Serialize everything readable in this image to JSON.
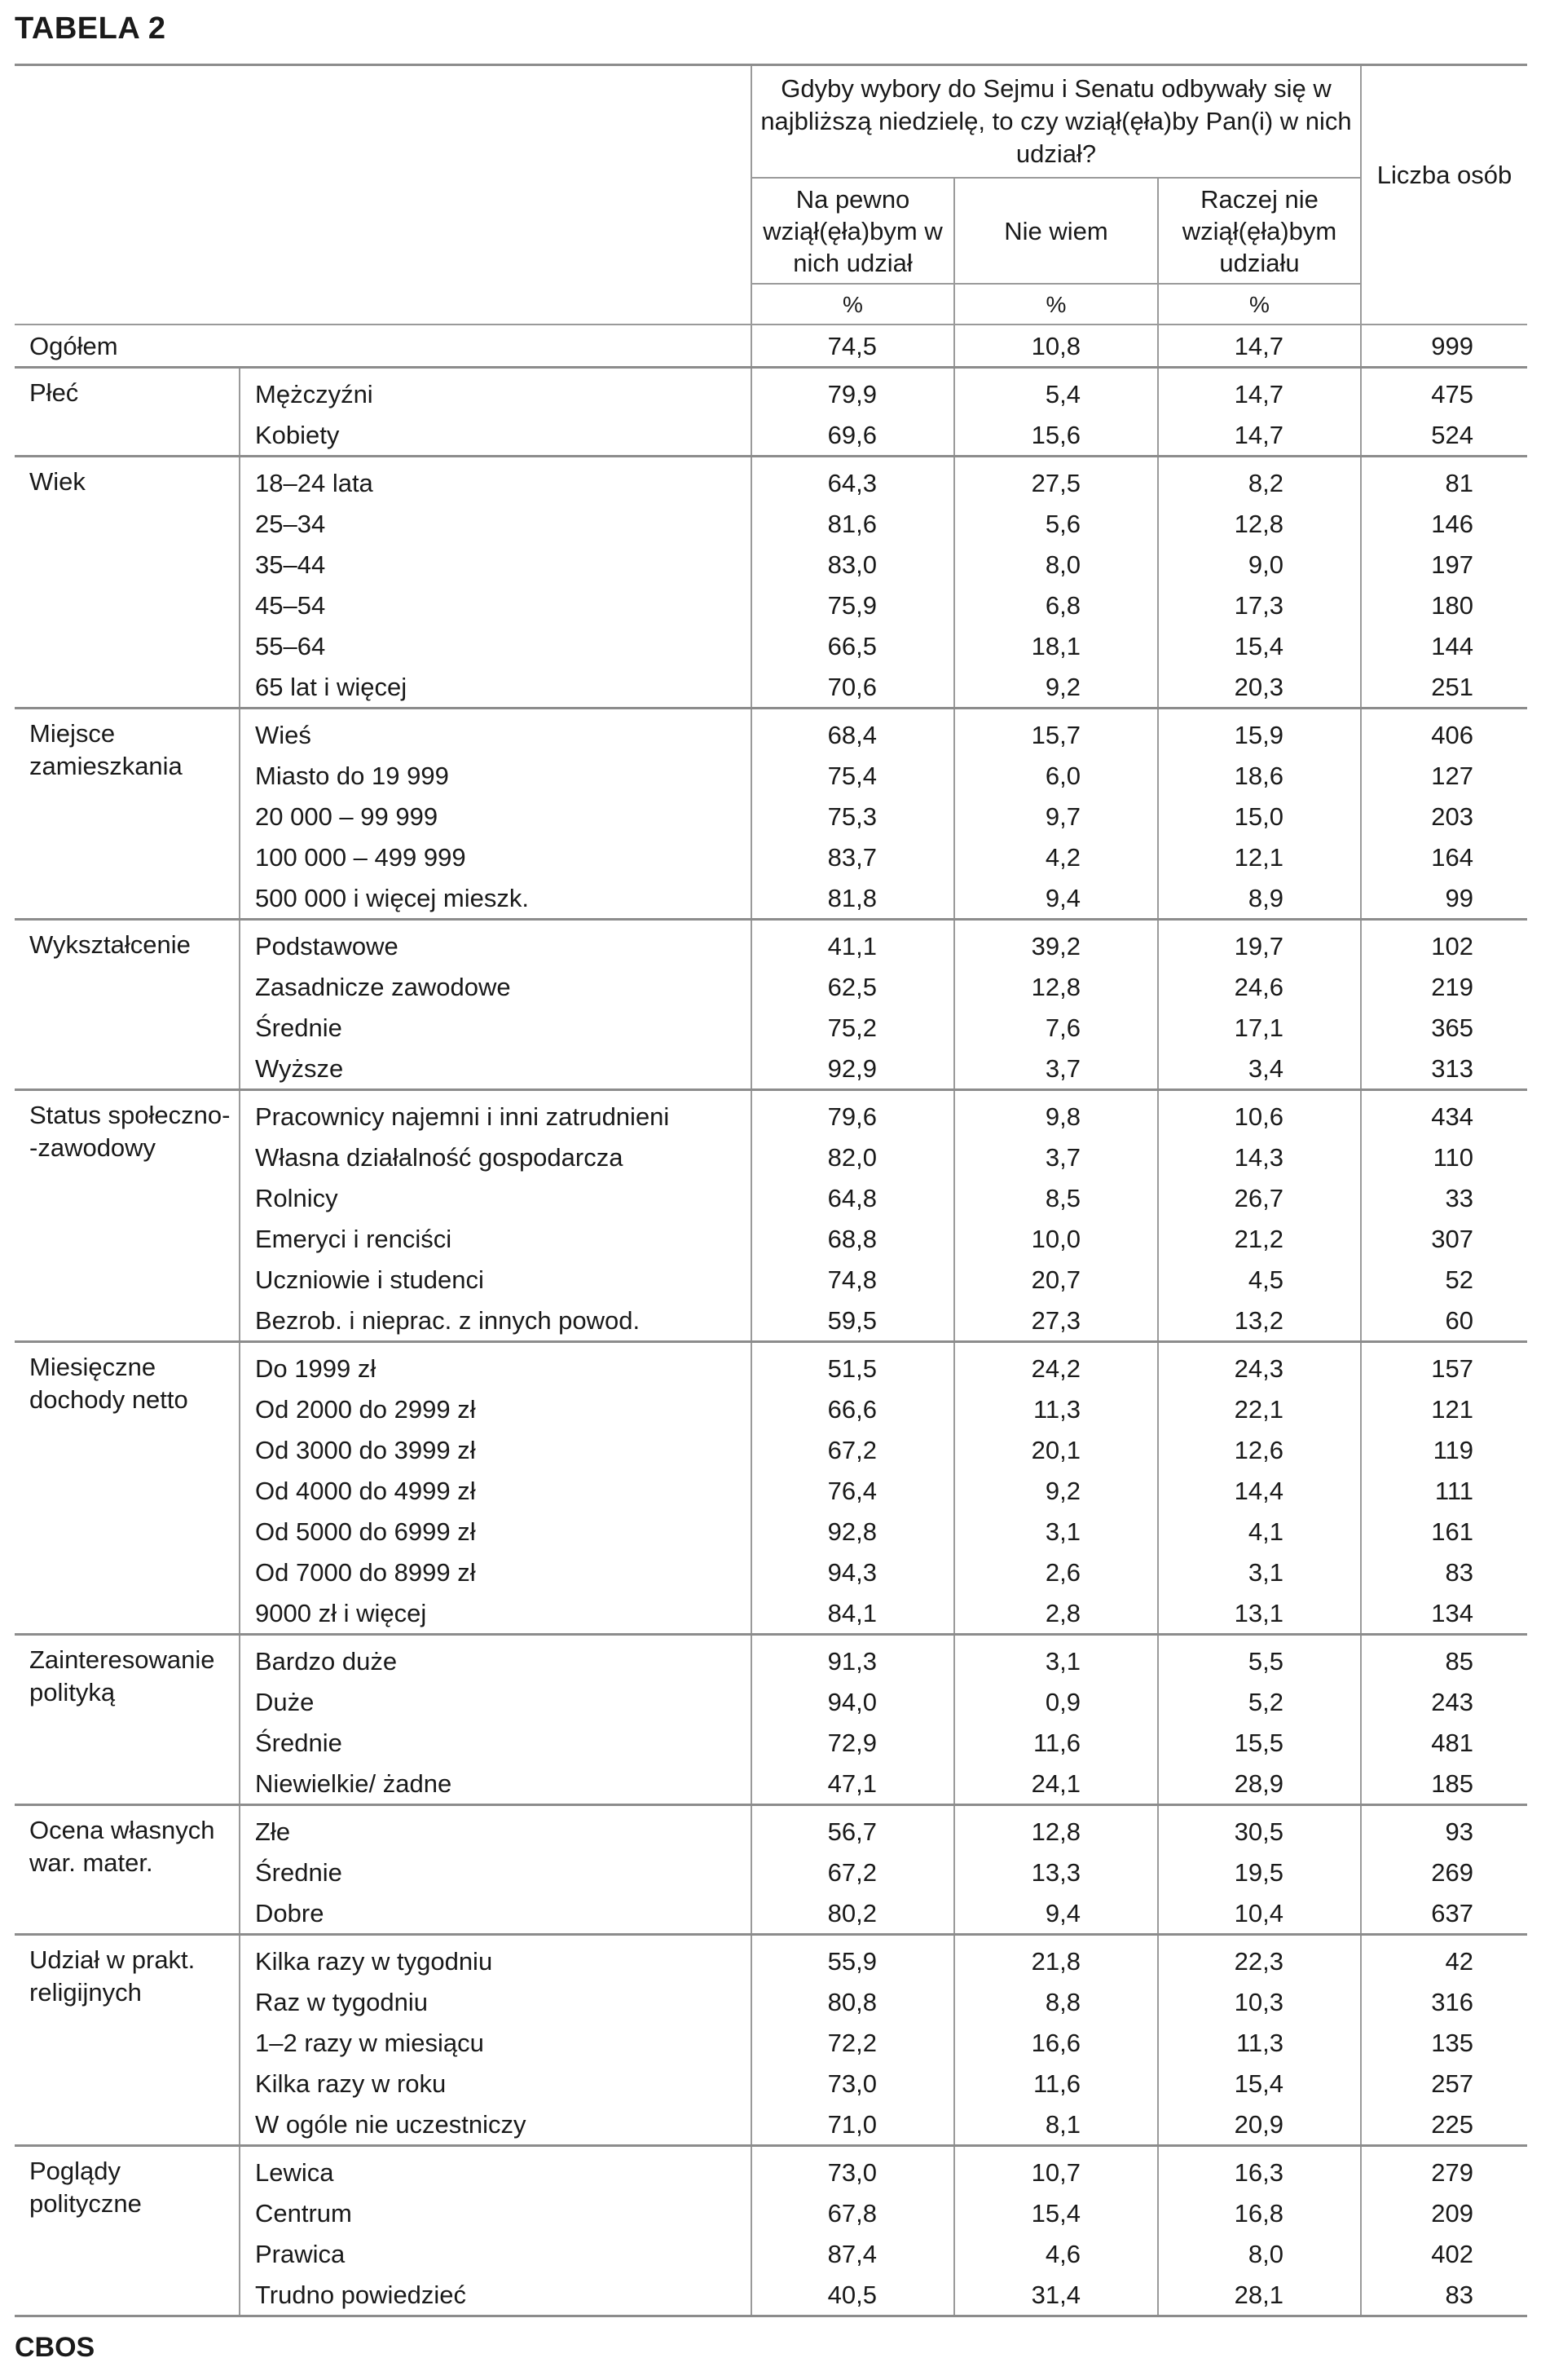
{
  "title": "TABELA 2",
  "footer": "CBOS",
  "header": {
    "question": "Gdyby wybory do Sejmu i Senatu odbywały się w najbliższą niedzielę, to czy wziął(ęła)by Pan(i) w nich udział?",
    "col1": "Na pewno wziął(ęła)bym w nich udział",
    "col2": "Nie wiem",
    "col3": "Raczej nie wziął(ęła)bym udziału",
    "col4": "Liczba osób",
    "pct": "%"
  },
  "total": {
    "label": "Ogółem",
    "values": [
      "74,5",
      "10,8",
      "14,7",
      "999"
    ]
  },
  "groups": [
    {
      "category": "Płeć",
      "rows": [
        {
          "label": "Mężczyźni",
          "values": [
            "79,9",
            "5,4",
            "14,7",
            "475"
          ]
        },
        {
          "label": "Kobiety",
          "values": [
            "69,6",
            "15,6",
            "14,7",
            "524"
          ]
        }
      ]
    },
    {
      "category": "Wiek",
      "rows": [
        {
          "label": "18–24 lata",
          "values": [
            "64,3",
            "27,5",
            "8,2",
            "81"
          ]
        },
        {
          "label": "25–34",
          "values": [
            "81,6",
            "5,6",
            "12,8",
            "146"
          ]
        },
        {
          "label": "35–44",
          "values": [
            "83,0",
            "8,0",
            "9,0",
            "197"
          ]
        },
        {
          "label": "45–54",
          "values": [
            "75,9",
            "6,8",
            "17,3",
            "180"
          ]
        },
        {
          "label": "55–64",
          "values": [
            "66,5",
            "18,1",
            "15,4",
            "144"
          ]
        },
        {
          "label": "65 lat i więcej",
          "values": [
            "70,6",
            "9,2",
            "20,3",
            "251"
          ]
        }
      ]
    },
    {
      "category": "Miejsce zamieszkania",
      "rows": [
        {
          "label": "Wieś",
          "values": [
            "68,4",
            "15,7",
            "15,9",
            "406"
          ]
        },
        {
          "label": "Miasto do 19 999",
          "values": [
            "75,4",
            "6,0",
            "18,6",
            "127"
          ]
        },
        {
          "label": "20 000 – 99 999",
          "values": [
            "75,3",
            "9,7",
            "15,0",
            "203"
          ]
        },
        {
          "label": "100 000 – 499 999",
          "values": [
            "83,7",
            "4,2",
            "12,1",
            "164"
          ]
        },
        {
          "label": "500 000 i więcej mieszk.",
          "values": [
            "81,8",
            "9,4",
            "8,9",
            "99"
          ]
        }
      ]
    },
    {
      "category": "Wykształcenie",
      "rows": [
        {
          "label": "Podstawowe",
          "values": [
            "41,1",
            "39,2",
            "19,7",
            "102"
          ]
        },
        {
          "label": "Zasadnicze zawodowe",
          "values": [
            "62,5",
            "12,8",
            "24,6",
            "219"
          ]
        },
        {
          "label": "Średnie",
          "values": [
            "75,2",
            "7,6",
            "17,1",
            "365"
          ]
        },
        {
          "label": "Wyższe",
          "values": [
            "92,9",
            "3,7",
            "3,4",
            "313"
          ]
        }
      ]
    },
    {
      "category": "Status społeczno- -zawodowy",
      "rows": [
        {
          "label": "Pracownicy najemni i inni zatrudnieni",
          "values": [
            "79,6",
            "9,8",
            "10,6",
            "434"
          ]
        },
        {
          "label": "Własna działalność gospodarcza",
          "values": [
            "82,0",
            "3,7",
            "14,3",
            "110"
          ]
        },
        {
          "label": "Rolnicy",
          "values": [
            "64,8",
            "8,5",
            "26,7",
            "33"
          ]
        },
        {
          "label": "Emeryci i renciści",
          "values": [
            "68,8",
            "10,0",
            "21,2",
            "307"
          ]
        },
        {
          "label": "Uczniowie i studenci",
          "values": [
            "74,8",
            "20,7",
            "4,5",
            "52"
          ]
        },
        {
          "label": "Bezrob. i nieprac. z innych powod.",
          "values": [
            "59,5",
            "27,3",
            "13,2",
            "60"
          ]
        }
      ]
    },
    {
      "category": "Miesięczne dochody netto",
      "rows": [
        {
          "label": "Do 1999 zł",
          "values": [
            "51,5",
            "24,2",
            "24,3",
            "157"
          ]
        },
        {
          "label": "Od 2000 do 2999 zł",
          "values": [
            "66,6",
            "11,3",
            "22,1",
            "121"
          ]
        },
        {
          "label": "Od 3000 do 3999 zł",
          "values": [
            "67,2",
            "20,1",
            "12,6",
            "119"
          ]
        },
        {
          "label": "Od 4000 do 4999 zł",
          "values": [
            "76,4",
            "9,2",
            "14,4",
            "111"
          ]
        },
        {
          "label": "Od 5000 do 6999 zł",
          "values": [
            "92,8",
            "3,1",
            "4,1",
            "161"
          ]
        },
        {
          "label": "Od 7000 do 8999 zł",
          "values": [
            "94,3",
            "2,6",
            "3,1",
            "83"
          ]
        },
        {
          "label": "9000 zł i więcej",
          "values": [
            "84,1",
            "2,8",
            "13,1",
            "134"
          ]
        }
      ]
    },
    {
      "category": "Zainteresowanie polityką",
      "rows": [
        {
          "label": "Bardzo duże",
          "values": [
            "91,3",
            "3,1",
            "5,5",
            "85"
          ]
        },
        {
          "label": "Duże",
          "values": [
            "94,0",
            "0,9",
            "5,2",
            "243"
          ]
        },
        {
          "label": "Średnie",
          "values": [
            "72,9",
            "11,6",
            "15,5",
            "481"
          ]
        },
        {
          "label": "Niewielkie/ żadne",
          "values": [
            "47,1",
            "24,1",
            "28,9",
            "185"
          ]
        }
      ]
    },
    {
      "category": "Ocena własnych war. mater.",
      "rows": [
        {
          "label": "Złe",
          "values": [
            "56,7",
            "12,8",
            "30,5",
            "93"
          ]
        },
        {
          "label": "Średnie",
          "values": [
            "67,2",
            "13,3",
            "19,5",
            "269"
          ]
        },
        {
          "label": "Dobre",
          "values": [
            "80,2",
            "9,4",
            "10,4",
            "637"
          ]
        }
      ]
    },
    {
      "category": "Udział w prakt. religijnych",
      "rows": [
        {
          "label": "Kilka razy w tygodniu",
          "values": [
            "55,9",
            "21,8",
            "22,3",
            "42"
          ]
        },
        {
          "label": "Raz w tygodniu",
          "values": [
            "80,8",
            "8,8",
            "10,3",
            "316"
          ]
        },
        {
          "label": "1–2 razy w miesiącu",
          "values": [
            "72,2",
            "16,6",
            "11,3",
            "135"
          ]
        },
        {
          "label": "Kilka razy w roku",
          "values": [
            "73,0",
            "11,6",
            "15,4",
            "257"
          ]
        },
        {
          "label": "W ogóle nie uczestniczy",
          "values": [
            "71,0",
            "8,1",
            "20,9",
            "225"
          ]
        }
      ]
    },
    {
      "category": "Poglądy polityczne",
      "rows": [
        {
          "label": "Lewica",
          "values": [
            "73,0",
            "10,7",
            "16,3",
            "279"
          ]
        },
        {
          "label": "Centrum",
          "values": [
            "67,8",
            "15,4",
            "16,8",
            "209"
          ]
        },
        {
          "label": "Prawica",
          "values": [
            "87,4",
            "4,6",
            "8,0",
            "402"
          ]
        },
        {
          "label": "Trudno powiedzieć",
          "values": [
            "40,5",
            "31,4",
            "28,1",
            "83"
          ]
        }
      ]
    }
  ]
}
